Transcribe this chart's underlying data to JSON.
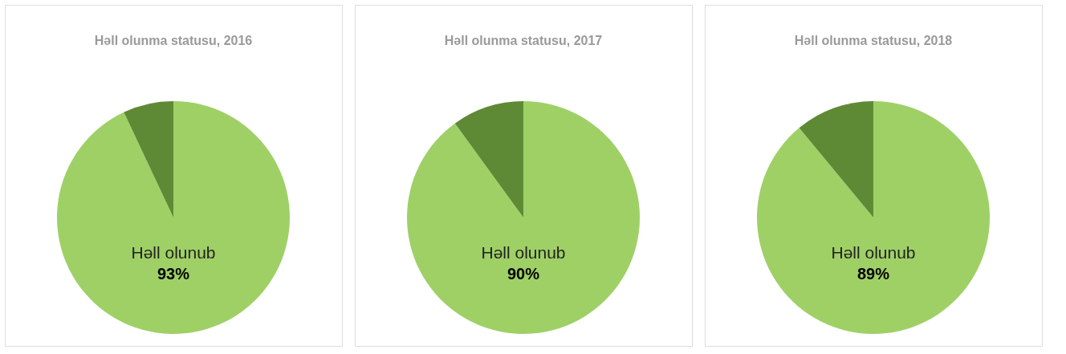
{
  "chart_data": [
    {
      "type": "pie",
      "title": "Həll olunma statusu, 2016",
      "categories": [
        "Həll olunub",
        null
      ],
      "values": [
        93,
        7
      ],
      "colors": [
        "#9fd066",
        "#5f8a35"
      ],
      "value_labels": [
        "93%",
        null
      ]
    },
    {
      "type": "pie",
      "title": "Həll olunma statusu, 2017",
      "categories": [
        "Həll olunub",
        null
      ],
      "values": [
        90,
        10
      ],
      "colors": [
        "#9fd066",
        "#5f8a35"
      ],
      "value_labels": [
        "90%",
        null
      ]
    },
    {
      "type": "pie",
      "title": "Həll olunma statusu, 2018",
      "categories": [
        "Həll olunub",
        null
      ],
      "values": [
        89,
        11
      ],
      "colors": [
        "#9fd066",
        "#5f8a35"
      ],
      "value_labels": [
        "89%",
        null
      ]
    }
  ]
}
